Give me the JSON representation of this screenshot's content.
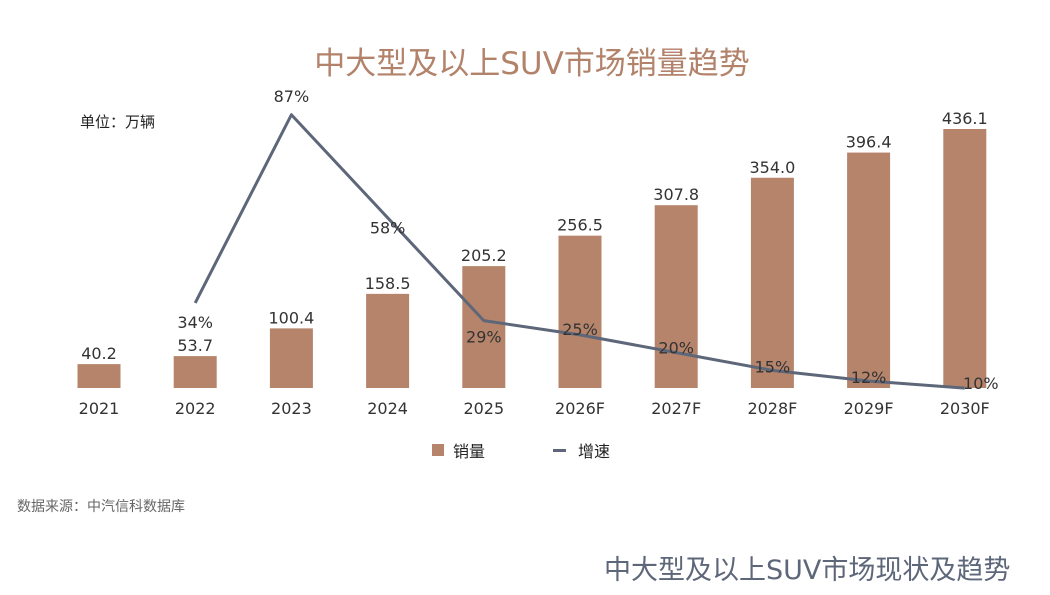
{
  "chart_data": {
    "type": "bar+line",
    "title": "中大型及以上SUV市场销量趋势",
    "unit_label": "单位：万辆",
    "categories": [
      "2021",
      "2022",
      "2023",
      "2024",
      "2025",
      "2026F",
      "2027F",
      "2028F",
      "2029F",
      "2030F"
    ],
    "series": [
      {
        "name": "销量",
        "type": "bar",
        "values": [
          40.2,
          53.7,
          100.4,
          158.5,
          205.2,
          256.5,
          307.8,
          354.0,
          396.4,
          436.1
        ],
        "labels": [
          "40.2",
          "53.7",
          "100.4",
          "158.5",
          "205.2",
          "256.5",
          "307.8",
          "354.0",
          "396.4",
          "436.1"
        ]
      },
      {
        "name": "增速",
        "type": "line",
        "values": [
          34,
          87,
          58,
          29,
          25,
          20,
          15,
          12,
          10
        ],
        "x": [
          "2022",
          "2023",
          "2024",
          "2025",
          "2026F",
          "2027F",
          "2028F",
          "2029F",
          "2030F"
        ],
        "labels": [
          "34%",
          "87%",
          "58%",
          "29%",
          "25%",
          "20%",
          "15%",
          "12%",
          "10%"
        ]
      }
    ],
    "colors": {
      "bar": "#b5846b",
      "line": "#5d6779",
      "title": "#b2826a"
    },
    "legend_position": "bottom",
    "grid": false
  },
  "source": "数据来源：中汽信科数据库",
  "footer_title": "中大型及以上SUV市场现状及趋势"
}
